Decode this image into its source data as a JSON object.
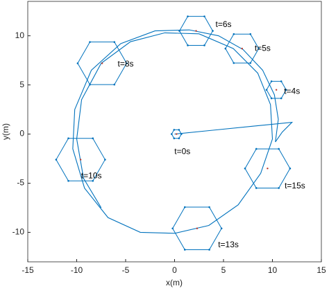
{
  "chart_data": {
    "type": "trajectory",
    "x_label": "x(m)",
    "y_label": "y(m)",
    "xlim": [
      -15,
      15
    ],
    "ylim": [
      -13,
      13.5
    ],
    "xticks": [
      -15,
      -10,
      -5,
      0,
      5,
      10,
      15
    ],
    "yticks": [
      -10,
      -5,
      0,
      5,
      10
    ],
    "color": "#0072bd",
    "series": [
      {
        "x": [
          0,
          4,
          8,
          12,
          11,
          10.3,
          10.6,
          10.2,
          9,
          7,
          4.5,
          1.5,
          -2,
          -5.5,
          -8.5,
          -10.2,
          -10.4,
          -9.2,
          -6.8,
          -3.5,
          0,
          3.5,
          6.5,
          8.8,
          10,
          9.8,
          8.5,
          6,
          2.5,
          -1,
          -4.5,
          -7.5,
          -9.5,
          -10,
          -9.3,
          -7.5
        ],
        "y": [
          0,
          0.4,
          0.8,
          1.2,
          0.2,
          -0.8,
          1.5,
          4,
          6.5,
          8.6,
          10,
          10.6,
          10.5,
          9.2,
          6.5,
          2.5,
          -1.5,
          -5.5,
          -8.5,
          -10,
          -10.1,
          -9.3,
          -7.2,
          -4,
          -0.5,
          3,
          6.2,
          8.7,
          10.2,
          10.3,
          9.4,
          7.2,
          3.5,
          -0.5,
          -4.5,
          -7.5
        ]
      }
    ],
    "formations": [
      {
        "label": "t=0s",
        "x": 0.2,
        "y": 0,
        "r": 0.5,
        "label_x": 0.8,
        "label_y": -1.8
      },
      {
        "label": "t=4s",
        "x": 10.4,
        "y": 4.5,
        "r": 1,
        "label_x": 12,
        "label_y": 4.3
      },
      {
        "label": "t=5s",
        "x": 6.9,
        "y": 8.7,
        "r": 1.7,
        "label_x": 9,
        "label_y": 8.7
      },
      {
        "label": "t=6s",
        "x": 2.2,
        "y": 10.5,
        "r": 1.7,
        "label_x": 5,
        "label_y": 11.1
      },
      {
        "label": "t=8s",
        "x": -7.4,
        "y": 7.2,
        "r": 2.5,
        "label_x": -5,
        "label_y": 7.1
      },
      {
        "label": "t=10s",
        "x": -9.6,
        "y": -2.6,
        "r": 2.5,
        "label_x": -8.5,
        "label_y": -4.3
      },
      {
        "label": "t=13s",
        "x": 2.3,
        "y": -9.6,
        "r": 2.5,
        "label_x": 5.5,
        "label_y": -11.3
      },
      {
        "label": "t=15s",
        "x": 9.5,
        "y": -3.5,
        "r": 2.3,
        "label_x": 12.3,
        "label_y": -5.3
      }
    ]
  }
}
